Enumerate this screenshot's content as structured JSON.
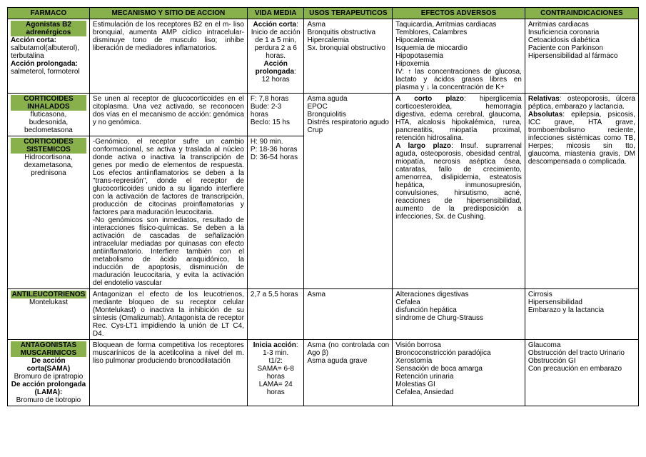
{
  "headers": [
    "FARMACO",
    "MECANISMO Y SITIO DE ACCION",
    "VIDA MEDIA",
    "USOS TERAPEUTICOS",
    "EFECTOS ADVERSOS",
    "CONTRAINDICACIONES"
  ],
  "r1": {
    "farmaco_head1": "Agonistas B2 adrenérgicos",
    "farmaco_sub1": "Acción corta:",
    "farmaco_sub1_txt": " salbutamol(albuterol), terbutalina",
    "farmaco_sub2": "Acción prolongada:",
    "farmaco_sub2_txt": " salmeterol, formoterol",
    "mecanismo": "Estimulación de los receptores B2 en el m- liso bronquial, aumenta AMP cíclico intracelular- disminuye tono de musculo liso; inhibe liberación de mediadores inflamatorios.",
    "vida_b1": "Acción corta",
    "vida_t1": ": Inicio de acción de 1 a 5 min, perdura 2 a 6 horas.",
    "vida_b2": "Acción prolongada",
    "vida_t2": ": 12 horas",
    "usos": "Asma\nBronquitis obstructiva\nHipercalemia\nSx. bronquial obstructivo",
    "efectos": "Taquicardia, Arritmias cardiacas\nTemblores, Calambres\nHipocalemia\nIsquemia de miocardio\nHipopotasemia\nHipoxemia\nIV: ↑ las concentraciones de glucosa, lactato y ácidos grasos libres en plasma y ↓ la concentración de K+",
    "contra": "Arritmias cardiacas\nInsuficiencia coronaria\nCetoacidosis diabética\nPaciente con Parkinson\nHipersensibilidad al fármaco"
  },
  "r2": {
    "farmaco_head1": "CORTICOIDES INHALADOS",
    "farmaco_txt1": "fluticasona, budesonida, beclometasona",
    "farmaco_head2": "CORTICOIDES SISTEMICOS",
    "farmaco_txt2": "Hidrocortisona, dexametasona, prednisona",
    "mec1": "Se unen al receptor de glucocorticoides en el citoplasma. Una vez activado, se reconocen dos vías en el mecanismo de acción: genómica y no genómica.",
    "mec2": "-Genómico, el receptor sufre un cambio conformacional, se activa y traslada al núcleo donde activa o inactiva la transcripción de genes por medio de elementos de respuesta. Los efectos antiinflamatorios se deben a la \"trans-represión\", donde el receptor de glucocorticoides unido a su ligando interfiere con la activación de factores de transcripción, producción de citocinas proinflamatorias y factores para maduración leucocitaria.\n-No genómicos son inmediatos, resultado de interacciones físico-químicas. Se deben a la activación de cascadas de señalización intracelular mediadas por quinasas con efecto antiinflamatorio. Interfiere también con el metabolismo de ácido araquidónico, la inducción de apoptosis, disminución de maduración leucocitaria, y evita la activación del endotelio vascular",
    "vida1": "F: 7,8 horas\nBude: 2-3 horas\nBeclo: 15 hs",
    "vida2": "H: 90 min.\nP: 18-36 horas\nD: 36-54 horas",
    "usos": "Asma aguda\nEPOC\nBronquiolitis\nDistrés respiratorio agudo\nCrup",
    "ef_b1": "A corto plazo",
    "ef_t1": ": hiperglicemia corticoesteroidea, hemorragia digestiva, edema cerebral, glaucoma, HTA, alcalosis hipokalémica, ↑urea, pancreatitis, miopatía proximal, retención hidrosalina.",
    "ef_b2": "A largo plazo",
    "ef_t2": ": Insuf. suprarrenal aguda, osteoporosis, obesidad central, miopatía, necrosis aséptica ósea, cataratas, fallo de crecimiento, amenorrea, dislipidemia, esteatosis hepática, inmunosupresión, convulsiones, hirsutismo, acné, reacciones de hipersensibilidad, aumento de la predisposición a infecciones, Sx. de Cushing.",
    "con_b1": "Relativas",
    "con_t1": ": osteoporosis, úlcera péptica, embarazo y lactancia.",
    "con_b2": "Absolutas",
    "con_t2": ": epilepsia, psicosis, ICC grave, HTA grave, tromboembolismo reciente, infecciones sistémicas como TB, Herpes; micosis sin tto, glaucoma, miastenia gravis, DM descompensada o complicada."
  },
  "r3": {
    "farmaco_head": "ANTILEUCOTRIENOS",
    "farmaco_txt": "Montelukast",
    "mecanismo": "Antagonizan el efecto de los leucotrienos, mediante bloqueo de su receptor celular (Montelukast) o inactiva la inhibición de su síntesis (Omalizumab). Antagonista de receptor Rec. Cys-LT1 impidiendo la unión de LT C4, D4.",
    "vida": "2,7 a 5,5 horas",
    "usos": "Asma",
    "efectos": "Alteraciones digestivas\nCefalea\ndisfunción hepática\nsíndrome de Churg-Strauss",
    "contra": "Cirrosis\nHipersensibilidad\nEmbarazo y la lactancia"
  },
  "r4": {
    "farmaco_head": "ANTAGONISTAS MUSCARINICOS",
    "farmaco_b1": "De acción corta(SAMA)",
    "farmaco_t1": "Bromuro de ipratropio",
    "farmaco_b2": "De acción prolongada (LAMA):",
    "farmaco_t2": "Bromuro de tiotropio",
    "mecanismo": "Bloquean de forma competitiva los receptores muscarínicos de la acetilcolina a nivel del m. liso pulmonar produciendo broncodilatación",
    "vida_b": "Inicia acción",
    "vida_t": ": 1-3 min.\nt1/2:\nSAMA= 6-8 horas\nLAMA= 24 horas",
    "usos": "Asma (no controlada con Ago β)\nAsma aguda grave",
    "efectos": "Visión borrosa\nBroncoconstricción paradójica\nXerostomía\nSensación de boca amarga\nRetención urinaria\nMolestias GI\nCefalea, Ansiedad",
    "contra": "Glaucoma\nObstrucción del tracto Urinario\nObstrucción GI\nCon precaución en embarazo"
  }
}
